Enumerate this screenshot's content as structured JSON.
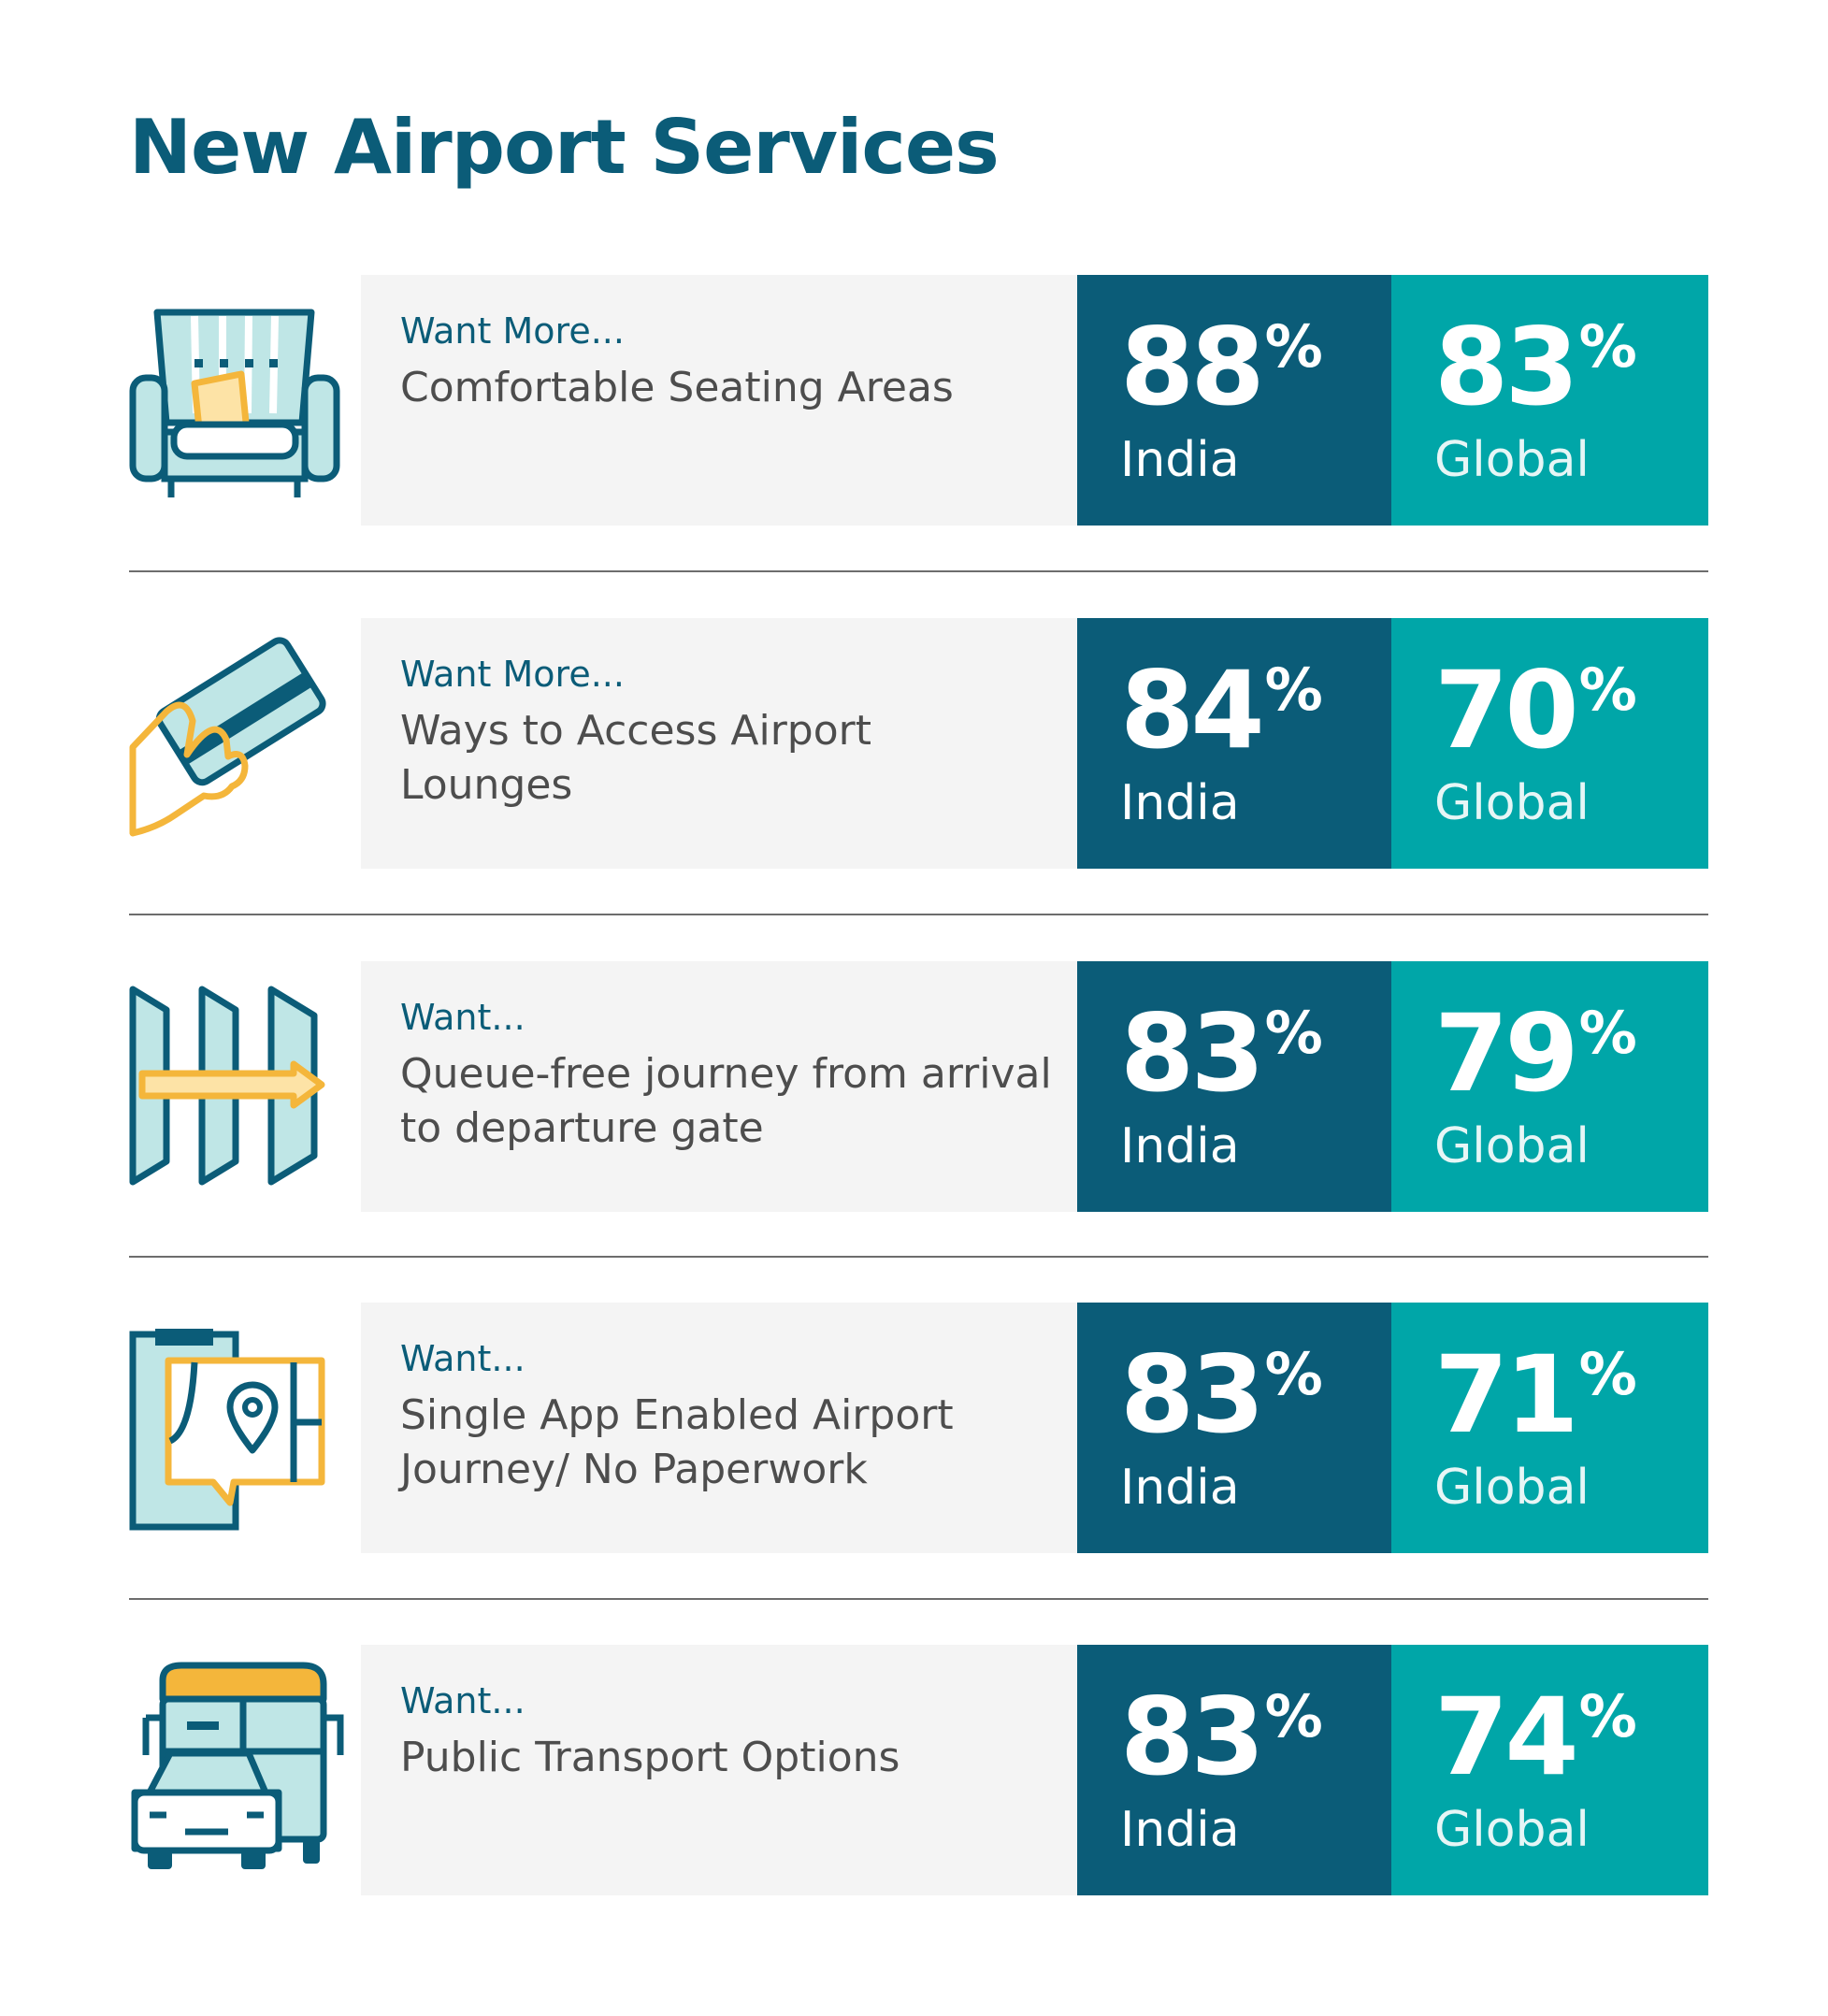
{
  "title": "New Airport Services",
  "colors": {
    "primary": "#0b5c78",
    "accent": "#00a6a8",
    "icon_yellow": "#f4b63b",
    "icon_fill": "#bfe6e6"
  },
  "region_labels": {
    "india": "India",
    "global": "Global"
  },
  "percent_sign": "%",
  "rows": [
    {
      "icon": "armchair-icon",
      "prefix": "Want More...",
      "label": "Comfortable Seating Areas",
      "india": "88",
      "global": "83"
    },
    {
      "icon": "card-in-hand-icon",
      "prefix": "Want More...",
      "label": "Ways to Access Airport Lounges",
      "india": "84",
      "global": "70"
    },
    {
      "icon": "gates-arrow-icon",
      "prefix": "Want...",
      "label": "Queue-free journey from arrival to departure gate",
      "india": "83",
      "global": "79"
    },
    {
      "icon": "phone-map-icon",
      "prefix": "Want...",
      "label": "Single App Enabled Airport Journey/ No Paperwork",
      "india": "83",
      "global": "71"
    },
    {
      "icon": "bus-and-car-icon",
      "prefix": "Want...",
      "label": "Public Transport Options",
      "india": "83",
      "global": "74"
    }
  ]
}
